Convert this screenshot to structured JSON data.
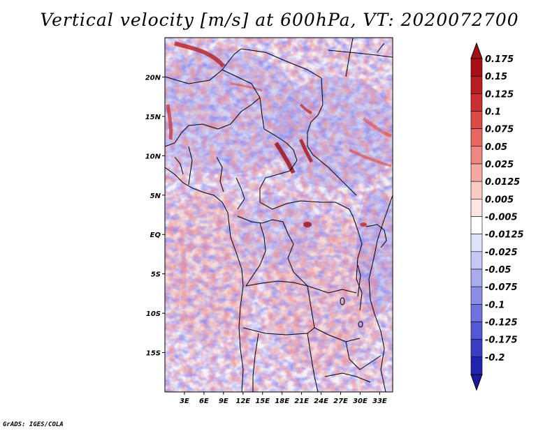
{
  "title": "Vertical velocity [m/s] at 600hPa, VT: 2020072700",
  "credit": "GrADS: IGES/COLA",
  "map": {
    "lon_range": [
      0,
      35
    ],
    "lat_range": [
      -20,
      25
    ],
    "lon_ticks": [
      {
        "value": 3,
        "label": "3E"
      },
      {
        "value": 6,
        "label": "6E"
      },
      {
        "value": 9,
        "label": "9E"
      },
      {
        "value": 12,
        "label": "12E"
      },
      {
        "value": 15,
        "label": "15E"
      },
      {
        "value": 18,
        "label": "18E"
      },
      {
        "value": 21,
        "label": "21E"
      },
      {
        "value": 24,
        "label": "24E"
      },
      {
        "value": 27,
        "label": "27E"
      },
      {
        "value": 30,
        "label": "30E"
      },
      {
        "value": 33,
        "label": "33E"
      }
    ],
    "lat_ticks": [
      {
        "value": 20,
        "label": "20N"
      },
      {
        "value": 15,
        "label": "15N"
      },
      {
        "value": 10,
        "label": "10N"
      },
      {
        "value": 5,
        "label": "5N"
      },
      {
        "value": 0,
        "label": "EQ"
      },
      {
        "value": -5,
        "label": "5S"
      },
      {
        "value": -10,
        "label": "10S"
      },
      {
        "value": -15,
        "label": "15S"
      }
    ]
  },
  "colorbar": {
    "levels": [
      {
        "label": "0.175",
        "color": "#a50f15"
      },
      {
        "label": "0.15",
        "color": "#b81d22"
      },
      {
        "label": "0.125",
        "color": "#cb2f2f"
      },
      {
        "label": "0.1",
        "color": "#db4a45"
      },
      {
        "label": "0.075",
        "color": "#e5675f"
      },
      {
        "label": "0.05",
        "color": "#ee8780"
      },
      {
        "label": "0.025",
        "color": "#f5a9a3"
      },
      {
        "label": "0.0125",
        "color": "#facac5"
      },
      {
        "label": "0.005",
        "color": "#fde4e1"
      },
      {
        "label": "-0.005",
        "color": "#ffffff"
      },
      {
        "label": "-0.0125",
        "color": "#e1e2fb"
      },
      {
        "label": "-0.025",
        "color": "#c6c7f5"
      },
      {
        "label": "-0.05",
        "color": "#a9abee"
      },
      {
        "label": "-0.075",
        "color": "#8c8ee6"
      },
      {
        "label": "-0.1",
        "color": "#6f72dd"
      },
      {
        "label": "-0.125",
        "color": "#5457d3"
      },
      {
        "label": "-0.175",
        "color": "#3a3cc4"
      },
      {
        "label": "-0.2",
        "color": "#2223ae"
      }
    ],
    "top_cap_color": "#a50f15",
    "bottom_cap_color": "#1a1a9a"
  }
}
